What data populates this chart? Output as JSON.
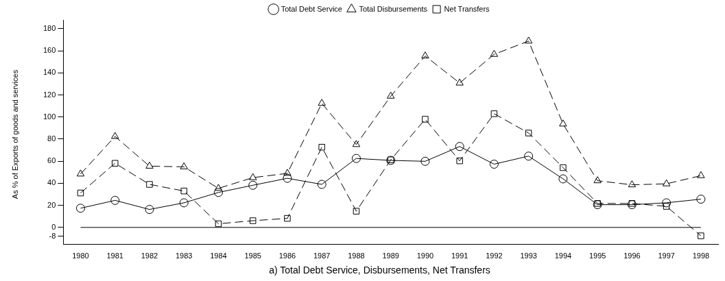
{
  "chart_data": {
    "type": "line",
    "title": "a) Total Debt Service, Disbursements, Net Transfers",
    "ylabel": "As % of Exports of goods and services",
    "categories": [
      "1980",
      "1981",
      "1982",
      "1983",
      "1984",
      "1985",
      "1986",
      "1987",
      "1988",
      "1989",
      "1990",
      "1991",
      "1992",
      "1993",
      "1994",
      "1995",
      "1996",
      "1997",
      "1998"
    ],
    "series": [
      {
        "name": "Total Debt Service",
        "color": "#000000",
        "marker": "circle",
        "line_style": "solid",
        "values": [
          17.4,
          24.5,
          16.3,
          22.3,
          31.7,
          38.2,
          44.5,
          39.0,
          62.5,
          60.7,
          59.9,
          73.3,
          57.3,
          64.6,
          44.0,
          20.6,
          20.6,
          22.3,
          25.6
        ]
      },
      {
        "name": "Total Disbursements",
        "color": "#000000",
        "marker": "triangle",
        "line_style": "dashed",
        "values": [
          48.4,
          82.4,
          55.5,
          54.9,
          35.4,
          45.1,
          49.0,
          112.4,
          75.1,
          118.9,
          155.3,
          130.8,
          156.8,
          168.8,
          93.7,
          42.3,
          38.6,
          39.5,
          46.9
        ]
      },
      {
        "name": "Net Transfers",
        "color": "#000000",
        "marker": "square",
        "line_style": "dashed",
        "values": [
          31.2,
          58.1,
          39.0,
          33.0,
          3.3,
          6.1,
          8.2,
          72.7,
          14.7,
          61.2,
          98.0,
          60.3,
          103.0,
          85.5,
          54.2,
          21.7,
          21.7,
          19.1,
          -7.6
        ]
      }
    ],
    "ylim": [
      -15,
      188
    ],
    "yticks": [
      -8,
      0,
      20,
      40,
      60,
      80,
      100,
      120,
      140,
      160,
      180
    ],
    "ref_lines": [
      {
        "axis": "y",
        "value": 0,
        "color": "#000000",
        "line_style": "solid"
      }
    ],
    "grid": false,
    "legend": "top"
  }
}
